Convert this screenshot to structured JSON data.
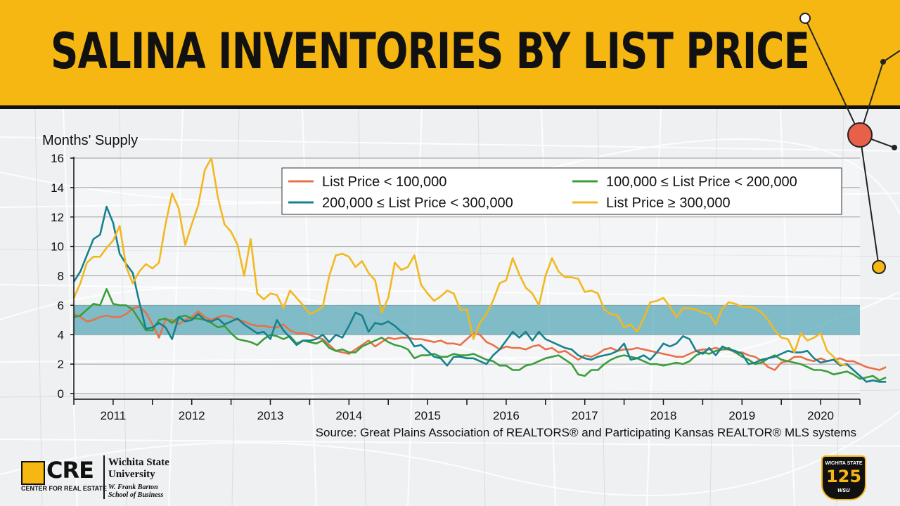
{
  "slide": {
    "title": "SALINA INVENTORIES BY LIST PRICE",
    "source": "Source: Great Plains Association of REALTORS® and Participating Kansas REALTOR® MLS systems"
  },
  "footer": {
    "cre_logo": "CRE",
    "cre_sub": "CENTER FOR REAL ESTATE",
    "wsu_line1": "Wichita State",
    "wsu_line2": "University",
    "school_line1": "W. Frank Barton",
    "school_line2": "School of Business",
    "badge_top": "WICHITA STATE",
    "badge_num": "125",
    "badge_bottom": "wsu"
  },
  "colors": {
    "banner": "#f6b713",
    "band": "#5aa8b8",
    "under100k": "#e8714a",
    "r100_200": "#3a9e3a",
    "r200_300": "#17818e",
    "over300": "#f2b820"
  },
  "chart_data": {
    "type": "line",
    "ylabel": "Months' Supply",
    "ylim": [
      0,
      16
    ],
    "yticks": [
      0,
      2,
      4,
      6,
      8,
      10,
      12,
      14,
      16
    ],
    "xlim": [
      2010.5,
      2020.5
    ],
    "xtick_labels": [
      "2011",
      "2012",
      "2013",
      "2014",
      "2015",
      "2016",
      "2017",
      "2018",
      "2019",
      "2020"
    ],
    "band": [
      4,
      6
    ],
    "legend_position": "top-right",
    "series": [
      {
        "name": "List Price < 100,000",
        "color": "#e8714a",
        "x_start": 2010.5,
        "step": 0.08333,
        "values": [
          5.4,
          5.2,
          4.9,
          5.0,
          5.2,
          5.3,
          5.2,
          5.2,
          5.4,
          5.8,
          5.9,
          5.5,
          4.7,
          3.8,
          5.0,
          5.0,
          4.7,
          5.0,
          5.2,
          5.6,
          5.2,
          5.0,
          5.2,
          5.3,
          5.2,
          5.0,
          4.9,
          4.7,
          4.6,
          4.6,
          4.5,
          4.5,
          4.7,
          4.3,
          4.1,
          4.1,
          4.0,
          3.8,
          3.7,
          3.3,
          2.9,
          2.8,
          2.7,
          3.0,
          3.3,
          3.6,
          3.2,
          3.5,
          3.8,
          3.7,
          3.8,
          3.8,
          3.7,
          3.7,
          3.6,
          3.5,
          3.6,
          3.4,
          3.4,
          3.3,
          3.7,
          4.1,
          4.0,
          3.5,
          3.3,
          3.0,
          3.2,
          3.1,
          3.1,
          3.0,
          3.2,
          3.3,
          3.0,
          3.1,
          2.8,
          2.9,
          2.6,
          2.3,
          2.6,
          2.5,
          2.7,
          3.0,
          3.1,
          2.9,
          3.0,
          3.0,
          3.1,
          3.0,
          2.9,
          2.8,
          2.7,
          2.6,
          2.5,
          2.5,
          2.7,
          2.9,
          3.0,
          3.0,
          3.1,
          3.0,
          3.0,
          2.8,
          2.8,
          2.6,
          2.5,
          2.2,
          1.8,
          1.6,
          2.1,
          2.2,
          2.5,
          2.5,
          2.3,
          2.2,
          2.4,
          2.2,
          2.3,
          2.4,
          2.2,
          2.2,
          2.0,
          1.8,
          1.7,
          1.6,
          1.8
        ]
      },
      {
        "name": "100,000 ≤ List Price < 200,000",
        "color": "#3a9e3a",
        "x_start": 2010.5,
        "step": 0.08333,
        "values": [
          5.2,
          5.3,
          5.7,
          6.1,
          6.0,
          7.1,
          6.1,
          6.0,
          6.0,
          5.7,
          5.0,
          4.3,
          4.3,
          5.0,
          5.1,
          4.8,
          5.2,
          5.3,
          5.1,
          5.1,
          5.0,
          4.8,
          4.5,
          4.6,
          4.1,
          3.7,
          3.6,
          3.5,
          3.3,
          3.7,
          4.0,
          3.9,
          3.7,
          3.9,
          3.4,
          3.6,
          3.5,
          3.4,
          3.6,
          3.1,
          2.9,
          3.0,
          2.8,
          2.8,
          3.2,
          3.4,
          3.6,
          3.8,
          3.5,
          3.3,
          3.2,
          3.0,
          2.4,
          2.6,
          2.6,
          2.7,
          2.5,
          2.5,
          2.7,
          2.6,
          2.6,
          2.7,
          2.5,
          2.3,
          2.2,
          1.9,
          1.9,
          1.6,
          1.6,
          1.9,
          2.0,
          2.2,
          2.4,
          2.5,
          2.6,
          2.3,
          2.0,
          1.3,
          1.2,
          1.6,
          1.6,
          2.0,
          2.3,
          2.5,
          2.6,
          2.5,
          2.4,
          2.2,
          2.0,
          2.0,
          1.9,
          2.0,
          2.1,
          2.0,
          2.2,
          2.6,
          2.8,
          2.7,
          2.9,
          3.0,
          3.1,
          2.8,
          2.5,
          2.3,
          2.0,
          2.1,
          2.4,
          2.6,
          2.3,
          2.2,
          2.1,
          2.0,
          1.8,
          1.6,
          1.6,
          1.5,
          1.3,
          1.4,
          1.5,
          1.3,
          1.0,
          1.1,
          1.2,
          0.9,
          1.1
        ]
      },
      {
        "name": "200,000 ≤ List Price < 300,000",
        "color": "#17818e",
        "x_start": 2010.5,
        "step": 0.08333,
        "values": [
          7.6,
          8.3,
          9.4,
          10.5,
          10.8,
          12.7,
          11.6,
          9.5,
          8.8,
          8.2,
          6.2,
          4.4,
          4.5,
          4.8,
          4.5,
          3.7,
          5.2,
          4.9,
          5.0,
          5.4,
          5.0,
          4.9,
          5.1,
          4.7,
          4.9,
          5.1,
          4.7,
          4.4,
          4.1,
          4.2,
          3.7,
          5.0,
          4.3,
          3.8,
          3.3,
          3.6,
          3.6,
          3.7,
          4.0,
          3.5,
          4.0,
          3.8,
          4.6,
          5.5,
          5.3,
          4.2,
          4.8,
          4.7,
          4.9,
          4.6,
          4.2,
          3.9,
          3.2,
          3.3,
          2.9,
          2.5,
          2.4,
          1.9,
          2.5,
          2.5,
          2.4,
          2.4,
          2.2,
          2.0,
          2.6,
          3.0,
          3.6,
          4.2,
          3.8,
          4.2,
          3.6,
          4.2,
          3.7,
          3.5,
          3.3,
          3.1,
          3.0,
          2.6,
          2.4,
          2.3,
          2.5,
          2.6,
          2.7,
          2.9,
          3.4,
          2.3,
          2.4,
          2.6,
          2.3,
          2.8,
          3.4,
          3.2,
          3.4,
          3.9,
          3.7,
          2.9,
          2.7,
          3.1,
          2.6,
          3.2,
          3.0,
          2.9,
          2.7,
          2.0,
          2.1,
          2.3,
          2.4,
          2.5,
          2.7,
          2.9,
          2.8,
          2.8,
          2.9,
          2.4,
          2.1,
          2.2,
          2.3,
          1.9,
          2.0,
          1.6,
          1.2,
          0.8,
          0.9,
          0.8,
          0.8
        ]
      },
      {
        "name": "List Price ≥ 300,000",
        "color": "#f2b820",
        "x_start": 2010.5,
        "step": 0.08333,
        "values": [
          6.5,
          7.5,
          8.9,
          9.3,
          9.3,
          9.9,
          10.4,
          11.4,
          8.6,
          7.5,
          8.3,
          8.8,
          8.5,
          8.9,
          11.5,
          13.6,
          12.6,
          10.1,
          11.5,
          12.8,
          15.2,
          16.0,
          13.3,
          11.5,
          11.0,
          10.1,
          8.0,
          10.5,
          6.8,
          6.4,
          6.8,
          6.7,
          5.8,
          7.0,
          6.5,
          6.0,
          5.4,
          5.6,
          5.9,
          8.0,
          9.4,
          9.5,
          9.3,
          8.6,
          9.0,
          8.2,
          7.7,
          5.5,
          6.5,
          8.9,
          8.4,
          8.6,
          9.4,
          7.4,
          6.8,
          6.3,
          6.6,
          7.0,
          6.8,
          5.7,
          5.7,
          3.7,
          4.8,
          5.4,
          6.3,
          7.5,
          7.7,
          9.2,
          8.1,
          7.2,
          6.8,
          6.0,
          8.0,
          9.2,
          8.3,
          7.9,
          7.9,
          7.8,
          6.9,
          7.0,
          6.8,
          5.7,
          5.4,
          5.3,
          4.5,
          4.7,
          4.2,
          5.1,
          6.2,
          6.3,
          6.5,
          5.9,
          5.2,
          5.8,
          5.8,
          5.7,
          5.5,
          5.4,
          4.7,
          5.8,
          6.2,
          6.1,
          5.9,
          5.9,
          5.8,
          5.5,
          5.0,
          4.3,
          3.8,
          3.7,
          2.8,
          4.1,
          3.6,
          3.8,
          4.1,
          2.9,
          2.5,
          2.0,
          1.9
        ]
      }
    ]
  }
}
